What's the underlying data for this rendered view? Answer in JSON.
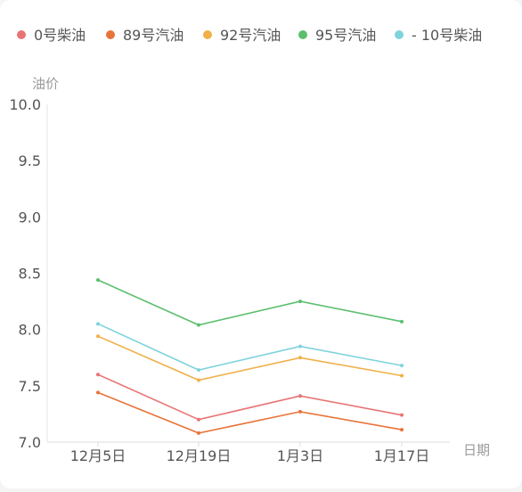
{
  "chart_data": {
    "type": "line",
    "title": "",
    "xlabel": "日期",
    "ylabel": "油价",
    "categories": [
      "12月5日",
      "12月19日",
      "1月3日",
      "1月17日"
    ],
    "ylim": [
      7.0,
      10.0
    ],
    "yticks": [
      "7.0",
      "7.5",
      "8.0",
      "8.5",
      "9.0",
      "9.5",
      "10.0"
    ],
    "grid": false,
    "legend_position": "top",
    "series": [
      {
        "name": "0号柴油",
        "color": "#e87474",
        "values": [
          7.6,
          7.2,
          7.41,
          7.24
        ]
      },
      {
        "name": "89号汽油",
        "color": "#e8743a",
        "values": [
          7.44,
          7.08,
          7.27,
          7.11
        ]
      },
      {
        "name": "92号汽油",
        "color": "#f0b04a",
        "values": [
          7.94,
          7.55,
          7.75,
          7.59
        ]
      },
      {
        "name": "95号汽油",
        "color": "#5cbf6e",
        "values": [
          8.44,
          8.04,
          8.25,
          8.07
        ]
      },
      {
        "name": "- 10号柴油",
        "color": "#7fd3dc",
        "values": [
          8.05,
          7.64,
          7.85,
          7.68
        ]
      }
    ]
  }
}
